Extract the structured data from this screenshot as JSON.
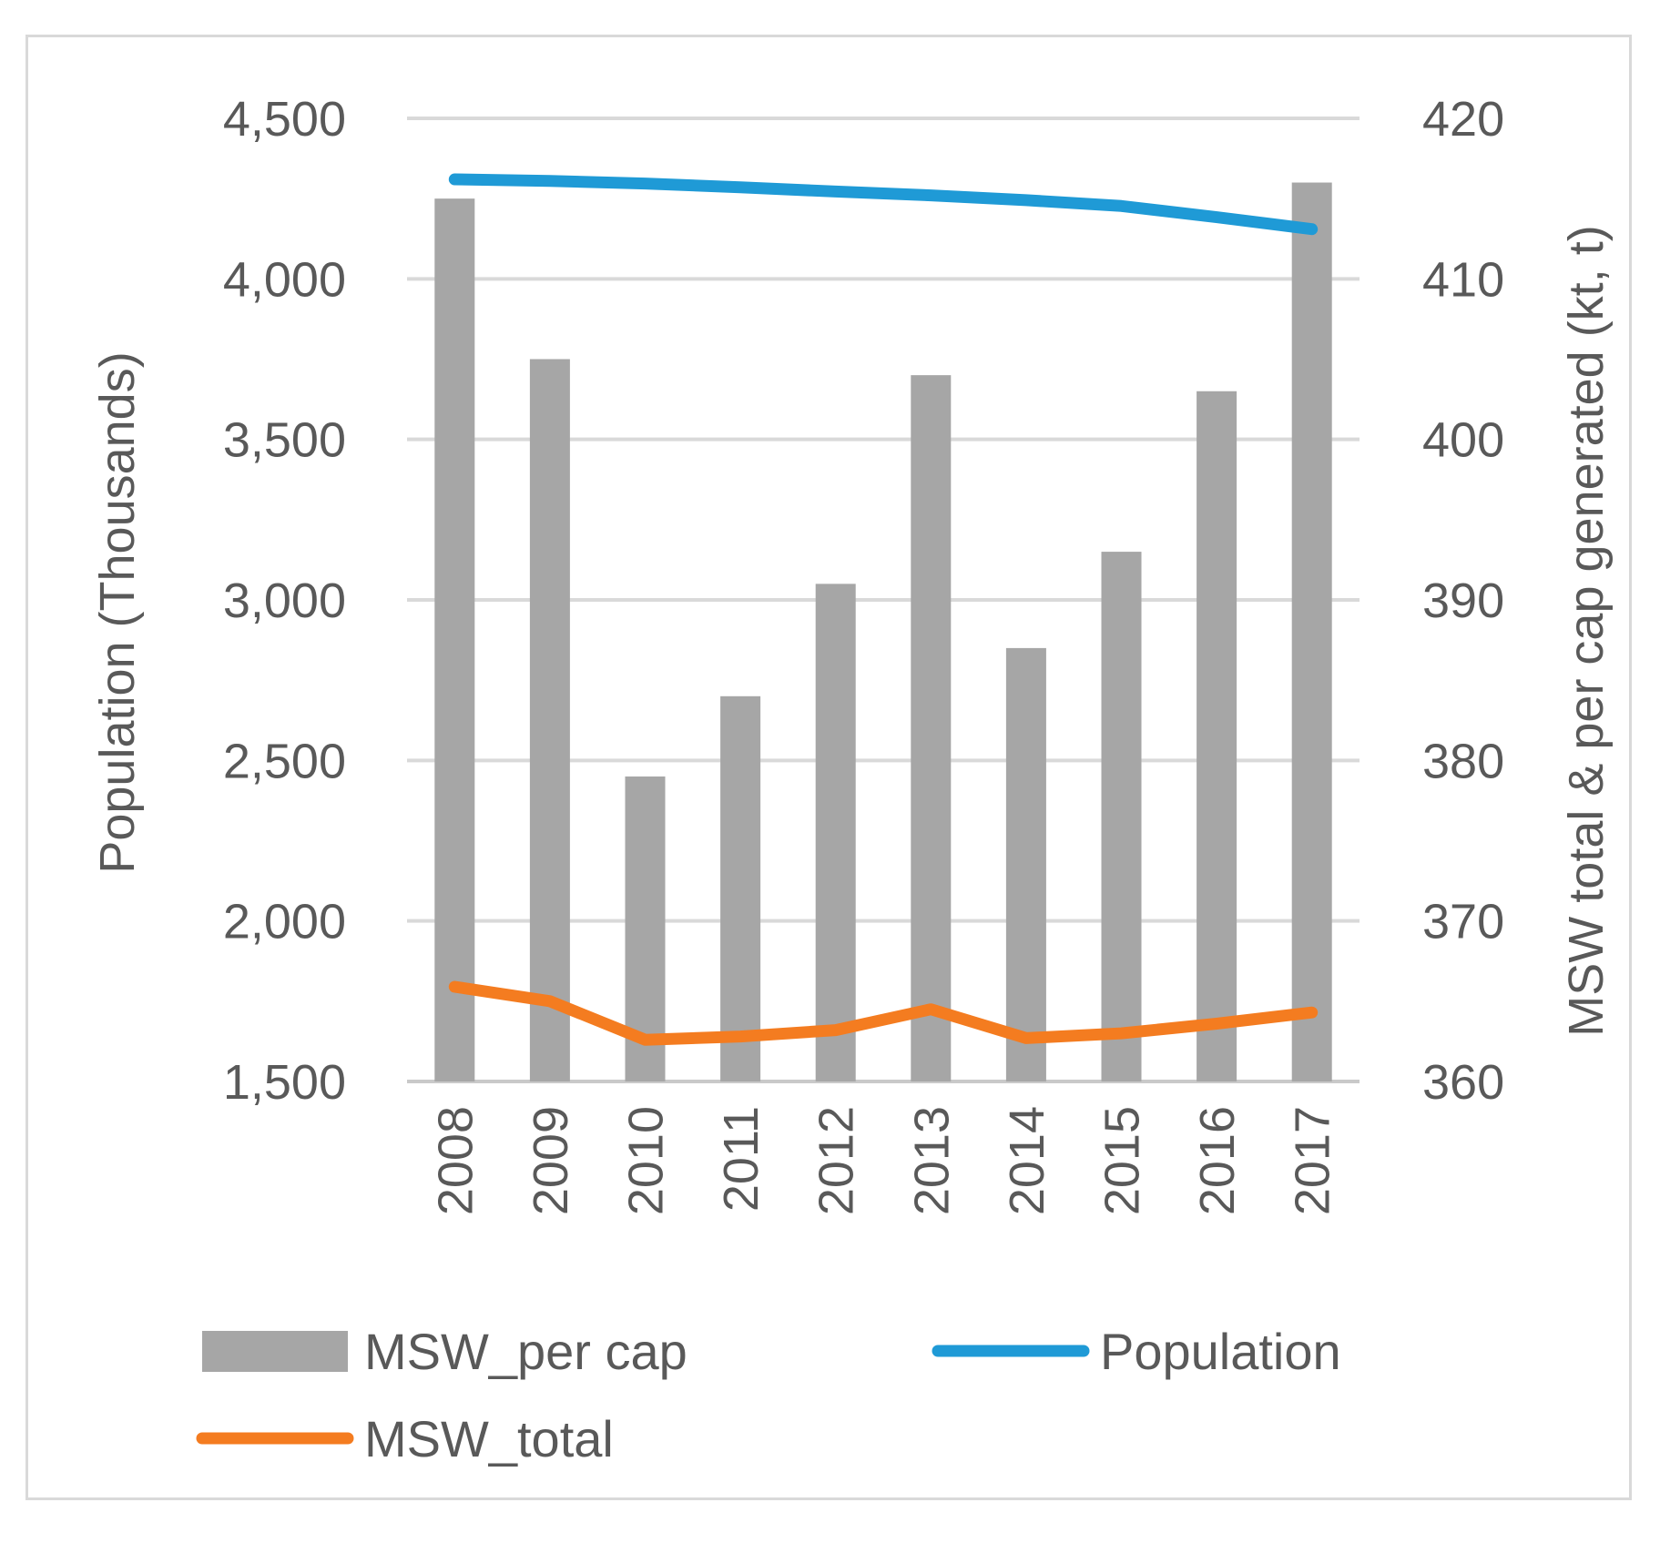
{
  "chart_data": {
    "type": "bar+line",
    "categories": [
      "2008",
      "2009",
      "2010",
      "2011",
      "2012",
      "2013",
      "2014",
      "2015",
      "2016",
      "2017"
    ],
    "series": [
      {
        "name": "MSW_per cap",
        "type": "bar",
        "axis": "right",
        "color": "#a6a6a6",
        "values": [
          415,
          405,
          379,
          384,
          391,
          404,
          387,
          393,
          403,
          416
        ]
      },
      {
        "name": "Population",
        "type": "line",
        "axis": "left",
        "color": "#1f9ad6",
        "values": [
          4310,
          4305,
          4297,
          4285,
          4272,
          4260,
          4245,
          4227,
          4192,
          4155
        ]
      },
      {
        "name": "MSW_total",
        "type": "line",
        "axis": "right",
        "color": "#f47c20",
        "values": [
          365.9,
          365.0,
          362.6,
          362.8,
          363.2,
          364.5,
          362.7,
          363.0,
          363.6,
          364.3
        ]
      }
    ],
    "yleft": {
      "label": "Population (Thousands)",
      "range": [
        1500,
        4500
      ],
      "ticks": [
        "1,500",
        "2,000",
        "2,500",
        "3,000",
        "3,500",
        "4,000",
        "4,500"
      ]
    },
    "yright": {
      "label": "MSW total & per cap generated (kt, t)",
      "range": [
        360,
        420
      ],
      "ticks": [
        "360",
        "370",
        "380",
        "390",
        "400",
        "410",
        "420"
      ]
    },
    "grid": true,
    "legend": {
      "position": "bottom",
      "items": [
        "MSW_per cap",
        "Population",
        "MSW_total"
      ]
    }
  }
}
